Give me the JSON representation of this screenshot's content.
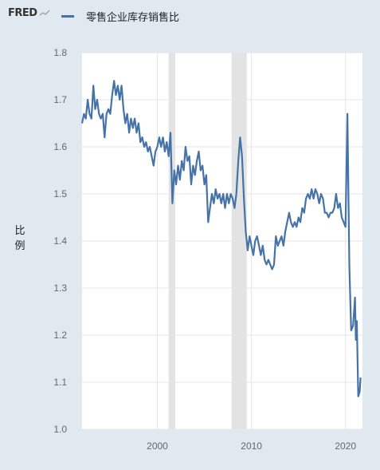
{
  "header": {
    "logo_text": "FRED",
    "logo_icon": "chart-line-icon"
  },
  "chart_data": {
    "type": "line",
    "title": "",
    "xlabel": "",
    "ylabel": "比例",
    "xlim": [
      1992.0,
      2021.8
    ],
    "ylim": [
      1.0,
      1.8
    ],
    "grid": true,
    "legend_position": "top-left",
    "yticks": [
      "1.0",
      "1.1",
      "1.2",
      "1.3",
      "1.4",
      "1.5",
      "1.6",
      "1.7",
      "1.8"
    ],
    "xticks": [
      {
        "value": 2000,
        "label": "2000"
      },
      {
        "value": 2010,
        "label": "2010"
      },
      {
        "value": 2020,
        "label": "2020"
      }
    ],
    "recessions": [
      [
        2001.2,
        2001.9
      ],
      [
        2007.9,
        2009.5
      ]
    ],
    "colors": {
      "line": "#4572a7",
      "recession": "#e3e3e3",
      "grid": "#e6e6e6",
      "tick": "#666666",
      "plot_bg": "#ffffff"
    },
    "series": [
      {
        "name": "零售企业库存销售比",
        "points": [
          [
            1992.0,
            1.65
          ],
          [
            1992.2,
            1.67
          ],
          [
            1992.4,
            1.66
          ],
          [
            1992.6,
            1.7
          ],
          [
            1992.8,
            1.67
          ],
          [
            1993.0,
            1.66
          ],
          [
            1993.2,
            1.73
          ],
          [
            1993.4,
            1.68
          ],
          [
            1993.6,
            1.7
          ],
          [
            1993.8,
            1.67
          ],
          [
            1994.0,
            1.66
          ],
          [
            1994.2,
            1.67
          ],
          [
            1994.4,
            1.62
          ],
          [
            1994.6,
            1.67
          ],
          [
            1994.8,
            1.68
          ],
          [
            1995.0,
            1.67
          ],
          [
            1995.2,
            1.71
          ],
          [
            1995.4,
            1.74
          ],
          [
            1995.6,
            1.71
          ],
          [
            1995.8,
            1.73
          ],
          [
            1996.0,
            1.7
          ],
          [
            1996.2,
            1.73
          ],
          [
            1996.4,
            1.68
          ],
          [
            1996.6,
            1.65
          ],
          [
            1996.8,
            1.67
          ],
          [
            1997.0,
            1.63
          ],
          [
            1997.2,
            1.66
          ],
          [
            1997.4,
            1.64
          ],
          [
            1997.6,
            1.66
          ],
          [
            1997.8,
            1.63
          ],
          [
            1998.0,
            1.65
          ],
          [
            1998.2,
            1.61
          ],
          [
            1998.4,
            1.62
          ],
          [
            1998.6,
            1.6
          ],
          [
            1998.8,
            1.61
          ],
          [
            1999.0,
            1.59
          ],
          [
            1999.2,
            1.6
          ],
          [
            1999.4,
            1.58
          ],
          [
            1999.6,
            1.56
          ],
          [
            1999.8,
            1.59
          ],
          [
            2000.0,
            1.6
          ],
          [
            2000.2,
            1.62
          ],
          [
            2000.4,
            1.6
          ],
          [
            2000.6,
            1.62
          ],
          [
            2000.8,
            1.59
          ],
          [
            2001.0,
            1.61
          ],
          [
            2001.2,
            1.58
          ],
          [
            2001.4,
            1.63
          ],
          [
            2001.6,
            1.48
          ],
          [
            2001.8,
            1.55
          ],
          [
            2002.0,
            1.52
          ],
          [
            2002.2,
            1.56
          ],
          [
            2002.4,
            1.53
          ],
          [
            2002.6,
            1.57
          ],
          [
            2002.8,
            1.55
          ],
          [
            2003.0,
            1.6
          ],
          [
            2003.2,
            1.57
          ],
          [
            2003.4,
            1.58
          ],
          [
            2003.6,
            1.52
          ],
          [
            2003.8,
            1.56
          ],
          [
            2004.0,
            1.54
          ],
          [
            2004.2,
            1.57
          ],
          [
            2004.4,
            1.59
          ],
          [
            2004.6,
            1.55
          ],
          [
            2004.8,
            1.56
          ],
          [
            2005.0,
            1.52
          ],
          [
            2005.2,
            1.54
          ],
          [
            2005.4,
            1.44
          ],
          [
            2005.6,
            1.47
          ],
          [
            2005.8,
            1.5
          ],
          [
            2006.0,
            1.48
          ],
          [
            2006.2,
            1.51
          ],
          [
            2006.4,
            1.49
          ],
          [
            2006.6,
            1.5
          ],
          [
            2006.8,
            1.48
          ],
          [
            2007.0,
            1.5
          ],
          [
            2007.2,
            1.47
          ],
          [
            2007.4,
            1.5
          ],
          [
            2007.6,
            1.48
          ],
          [
            2007.8,
            1.5
          ],
          [
            2008.0,
            1.49
          ],
          [
            2008.2,
            1.47
          ],
          [
            2008.4,
            1.5
          ],
          [
            2008.6,
            1.57
          ],
          [
            2008.8,
            1.62
          ],
          [
            2009.0,
            1.58
          ],
          [
            2009.2,
            1.49
          ],
          [
            2009.4,
            1.42
          ],
          [
            2009.6,
            1.38
          ],
          [
            2009.8,
            1.41
          ],
          [
            2010.0,
            1.39
          ],
          [
            2010.2,
            1.37
          ],
          [
            2010.4,
            1.4
          ],
          [
            2010.6,
            1.41
          ],
          [
            2010.8,
            1.39
          ],
          [
            2011.0,
            1.37
          ],
          [
            2011.2,
            1.39
          ],
          [
            2011.4,
            1.36
          ],
          [
            2011.6,
            1.35
          ],
          [
            2011.8,
            1.36
          ],
          [
            2012.0,
            1.35
          ],
          [
            2012.2,
            1.34
          ],
          [
            2012.4,
            1.35
          ],
          [
            2012.6,
            1.41
          ],
          [
            2012.8,
            1.39
          ],
          [
            2013.0,
            1.4
          ],
          [
            2013.2,
            1.41
          ],
          [
            2013.4,
            1.39
          ],
          [
            2013.6,
            1.42
          ],
          [
            2013.8,
            1.44
          ],
          [
            2014.0,
            1.46
          ],
          [
            2014.2,
            1.44
          ],
          [
            2014.4,
            1.43
          ],
          [
            2014.6,
            1.44
          ],
          [
            2014.8,
            1.43
          ],
          [
            2015.0,
            1.45
          ],
          [
            2015.2,
            1.44
          ],
          [
            2015.4,
            1.47
          ],
          [
            2015.6,
            1.46
          ],
          [
            2015.8,
            1.49
          ],
          [
            2016.0,
            1.5
          ],
          [
            2016.2,
            1.49
          ],
          [
            2016.4,
            1.51
          ],
          [
            2016.6,
            1.49
          ],
          [
            2016.8,
            1.51
          ],
          [
            2017.0,
            1.5
          ],
          [
            2017.2,
            1.48
          ],
          [
            2017.4,
            1.5
          ],
          [
            2017.6,
            1.49
          ],
          [
            2017.8,
            1.46
          ],
          [
            2018.0,
            1.46
          ],
          [
            2018.2,
            1.45
          ],
          [
            2018.4,
            1.46
          ],
          [
            2018.6,
            1.46
          ],
          [
            2018.8,
            1.47
          ],
          [
            2019.0,
            1.5
          ],
          [
            2019.2,
            1.47
          ],
          [
            2019.4,
            1.48
          ],
          [
            2019.6,
            1.45
          ],
          [
            2019.8,
            1.44
          ],
          [
            2020.0,
            1.43
          ],
          [
            2020.2,
            1.67
          ],
          [
            2020.4,
            1.35
          ],
          [
            2020.6,
            1.21
          ],
          [
            2020.8,
            1.22
          ],
          [
            2021.0,
            1.28
          ],
          [
            2021.1,
            1.19
          ],
          [
            2021.2,
            1.23
          ],
          [
            2021.35,
            1.07
          ],
          [
            2021.5,
            1.08
          ],
          [
            2021.6,
            1.11
          ]
        ]
      }
    ]
  }
}
